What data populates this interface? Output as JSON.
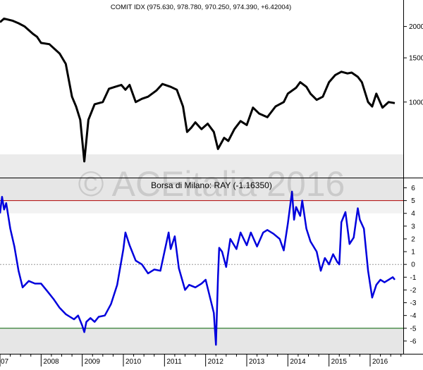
{
  "watermark": "© ACEitalia 2016",
  "chart_data": [
    {
      "type": "line",
      "title": "COMIT IDX (975.630, 978.780, 970.250, 974.390, +6.42004)",
      "ylim": [
        500,
        2550
      ],
      "yticks": [
        1000,
        1500,
        2000
      ],
      "color": "#000000",
      "series": [
        {
          "x": [
            2007.0,
            2007.1,
            2007.3,
            2007.45,
            2007.6,
            2007.8,
            2007.9,
            2008.0,
            2008.2,
            2008.45,
            2008.6,
            2008.75,
            2008.85,
            2008.95,
            2009.05,
            2009.15,
            2009.3,
            2009.5,
            2009.65,
            2009.8,
            2009.95,
            2010.05,
            2010.15,
            2010.3,
            2010.45,
            2010.6,
            2010.8,
            2010.95,
            2011.15,
            2011.3,
            2011.45,
            2011.55,
            2011.65,
            2011.75,
            2011.9,
            2012.05,
            2012.2,
            2012.3,
            2012.45,
            2012.55,
            2012.7,
            2012.85,
            2013.0,
            2013.15,
            2013.3,
            2013.5,
            2013.7,
            2013.9,
            2014.0,
            2014.2,
            2014.3,
            2014.45,
            2014.55,
            2014.7,
            2014.85,
            2015.0,
            2015.15,
            2015.3,
            2015.45,
            2015.55,
            2015.7,
            2015.8,
            2015.95,
            2016.05,
            2016.15,
            2016.3,
            2016.45,
            2016.6
          ],
          "y": [
            2080,
            2150,
            2110,
            2060,
            2000,
            1870,
            1820,
            1720,
            1700,
            1560,
            1420,
            1050,
            960,
            850,
            580,
            850,
            980,
            1000,
            1130,
            1150,
            1170,
            1120,
            1170,
            1000,
            1030,
            1050,
            1110,
            1180,
            1150,
            1120,
            960,
            760,
            790,
            830,
            780,
            820,
            760,
            650,
            720,
            700,
            780,
            840,
            810,
            950,
            900,
            870,
            960,
            1000,
            1080,
            1140,
            1200,
            1150,
            1080,
            1020,
            1050,
            1200,
            1280,
            1320,
            1300,
            1310,
            1260,
            1200,
            1000,
            960,
            1080,
            950,
            1000,
            990
          ]
        }
      ]
    },
    {
      "type": "line",
      "title": "Borsa di Milano: RAY (-1.16350)",
      "ylim": [
        -7,
        6.8
      ],
      "yticks": [
        -6,
        -5,
        -4,
        -3,
        -2,
        -1,
        0,
        1,
        2,
        3,
        4,
        5,
        6
      ],
      "reference_lines": [
        {
          "value": 5,
          "color": "#b00000"
        },
        {
          "value": 0,
          "color": "#999999"
        },
        {
          "value": -5,
          "color": "#006000"
        }
      ],
      "color": "#0000dd",
      "series": [
        {
          "x": [
            2007.0,
            2007.05,
            2007.1,
            2007.15,
            2007.25,
            2007.35,
            2007.45,
            2007.55,
            2007.7,
            2007.85,
            2008.0,
            2008.15,
            2008.3,
            2008.45,
            2008.6,
            2008.7,
            2008.8,
            2008.9,
            2009.0,
            2009.05,
            2009.1,
            2009.2,
            2009.3,
            2009.4,
            2009.55,
            2009.7,
            2009.85,
            2010.0,
            2010.05,
            2010.15,
            2010.3,
            2010.45,
            2010.6,
            2010.75,
            2010.9,
            2011.0,
            2011.1,
            2011.15,
            2011.25,
            2011.35,
            2011.5,
            2011.6,
            2011.75,
            2011.9,
            2012.0,
            2012.1,
            2012.2,
            2012.25,
            2012.3,
            2012.33,
            2012.4,
            2012.5,
            2012.6,
            2012.75,
            2012.85,
            2013.0,
            2013.1,
            2013.25,
            2013.4,
            2013.5,
            2013.65,
            2013.8,
            2013.9,
            2014.0,
            2014.1,
            2014.15,
            2014.2,
            2014.3,
            2014.35,
            2014.45,
            2014.55,
            2014.7,
            2014.8,
            2014.9,
            2015.0,
            2015.1,
            2015.2,
            2015.25,
            2015.3,
            2015.4,
            2015.5,
            2015.6,
            2015.7,
            2015.75,
            2015.85,
            2015.95,
            2016.05,
            2016.15,
            2016.25,
            2016.35,
            2016.45,
            2016.55,
            2016.6
          ],
          "y": [
            4.0,
            5.3,
            4.3,
            4.8,
            2.8,
            1.4,
            -0.5,
            -1.8,
            -1.3,
            -1.5,
            -1.5,
            -2.1,
            -2.7,
            -3.4,
            -3.9,
            -4.1,
            -4.3,
            -4.0,
            -4.8,
            -5.3,
            -4.5,
            -4.2,
            -4.5,
            -4.1,
            -4.0,
            -3.1,
            -1.6,
            1.2,
            2.5,
            1.5,
            0.3,
            0.0,
            -0.7,
            -0.4,
            -0.5,
            1.0,
            2.5,
            1.2,
            2.2,
            -0.3,
            -2.0,
            -1.6,
            -1.8,
            -1.5,
            -1.2,
            -2.5,
            -3.8,
            -6.3,
            -1.0,
            1.3,
            1.0,
            -0.2,
            2.0,
            1.2,
            2.5,
            1.5,
            2.5,
            1.4,
            2.5,
            2.7,
            2.4,
            2.0,
            1.1,
            3.2,
            5.7,
            3.5,
            4.5,
            3.8,
            5.0,
            2.8,
            1.8,
            1.0,
            -0.5,
            0.5,
            0.0,
            0.8,
            0.2,
            0.0,
            3.3,
            4.1,
            1.6,
            2.1,
            4.4,
            3.5,
            2.8,
            -0.5,
            -2.6,
            -1.6,
            -1.2,
            -1.4,
            -1.2,
            -1.0,
            -1.2
          ]
        }
      ]
    }
  ],
  "x_axis": {
    "labels": [
      "07",
      "2008",
      "2009",
      "2010",
      "2011",
      "2012",
      "2013",
      "2014",
      "2015",
      "2016"
    ],
    "positions": [
      2007,
      2008,
      2009,
      2010,
      2011,
      2012,
      2013,
      2014,
      2015,
      2016
    ]
  }
}
